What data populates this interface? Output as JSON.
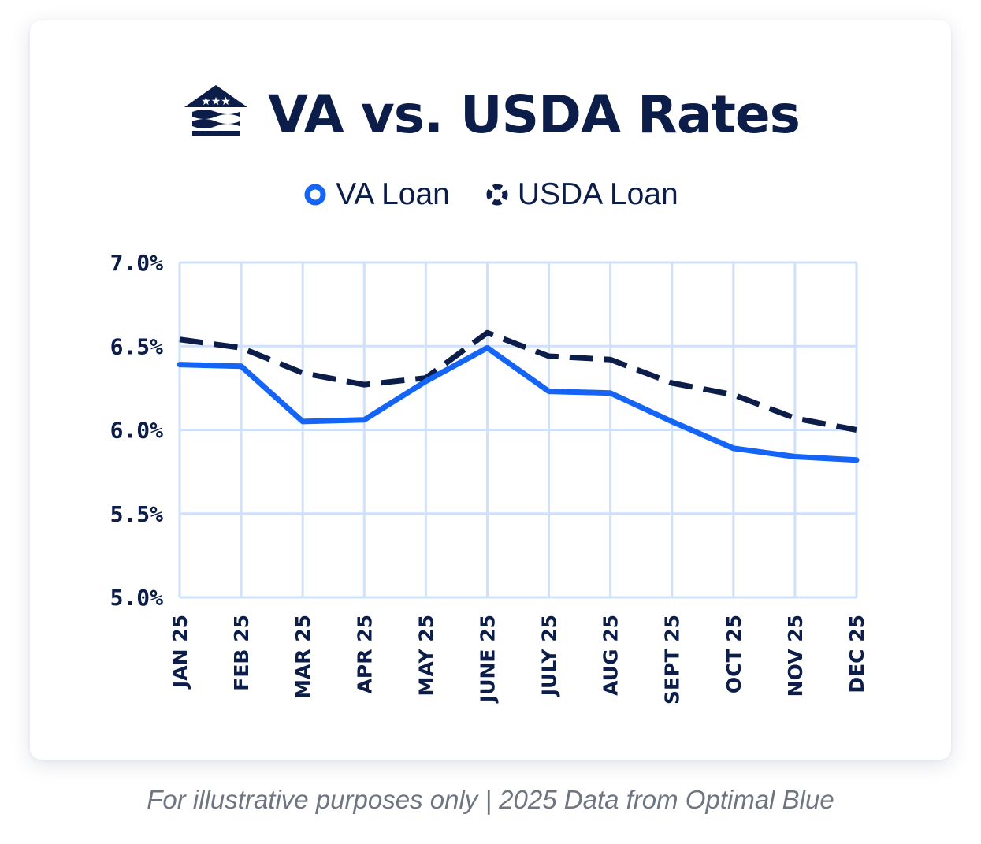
{
  "chart_data": {
    "type": "line",
    "title": "VA vs. USDA Rates",
    "categories": [
      "JAN 25",
      "FEB 25",
      "MAR 25",
      "APR 25",
      "MAY 25",
      "JUNE 25",
      "JULY 25",
      "AUG 25",
      "SEPT 25",
      "OCT 25",
      "NOV 25",
      "DEC 25"
    ],
    "series": [
      {
        "name": "VA Loan",
        "values": [
          6.39,
          6.38,
          6.05,
          6.06,
          6.29,
          6.49,
          6.23,
          6.22,
          6.05,
          5.89,
          5.84,
          5.82
        ],
        "color": "#1464f6",
        "style": "solid"
      },
      {
        "name": "USDA Loan",
        "values": [
          6.54,
          6.49,
          6.34,
          6.27,
          6.31,
          6.58,
          6.44,
          6.42,
          6.28,
          6.21,
          6.07,
          6.0
        ],
        "color": "#0b1d48",
        "style": "dashed"
      }
    ],
    "ylim": [
      5.0,
      7.0
    ],
    "yticks": [
      "7.0%",
      "6.5%",
      "6.0%",
      "5.5%",
      "5.0%"
    ],
    "grid": true,
    "legend_position": "top-center",
    "grid_color": "#cfe0fb"
  },
  "footnote": "For illustrative purposes only | 2025 Data from Optimal Blue",
  "logo_icon": "house-flag-logo-icon"
}
